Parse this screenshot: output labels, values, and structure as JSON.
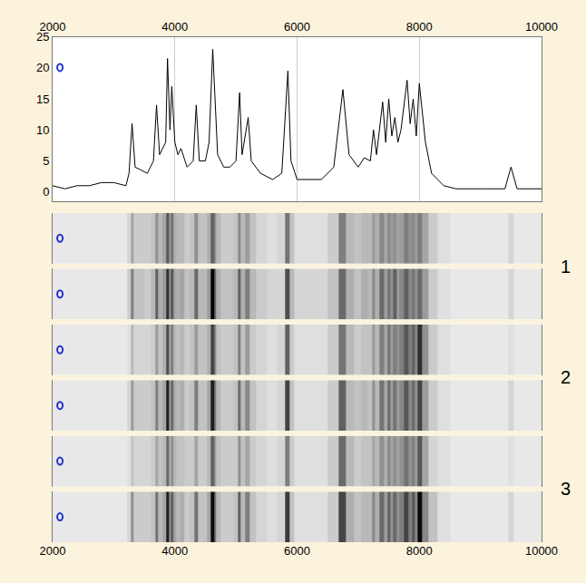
{
  "chart_data": {
    "type": "line",
    "x": [
      2000,
      2200,
      2400,
      2600,
      2800,
      3000,
      3200,
      3250,
      3300,
      3350,
      3450,
      3550,
      3650,
      3700,
      3750,
      3850,
      3880,
      3920,
      3950,
      4000,
      4050,
      4100,
      4200,
      4300,
      4350,
      4400,
      4500,
      4560,
      4620,
      4660,
      4700,
      4800,
      4900,
      5000,
      5060,
      5100,
      5200,
      5250,
      5400,
      5600,
      5750,
      5850,
      5900,
      6000,
      6200,
      6400,
      6600,
      6750,
      6850,
      7000,
      7100,
      7200,
      7250,
      7300,
      7400,
      7450,
      7500,
      7550,
      7600,
      7650,
      7700,
      7800,
      7850,
      7900,
      7950,
      8000,
      8100,
      8200,
      8400,
      8600,
      9000,
      9400,
      9500,
      9600,
      10000
    ],
    "values": [
      1,
      0.5,
      1,
      1,
      1.5,
      1.5,
      1,
      3,
      11,
      4,
      3.5,
      3,
      5,
      14,
      6,
      8,
      21.5,
      10,
      17,
      8,
      6,
      7,
      4,
      5,
      14,
      5,
      5,
      8,
      23,
      14,
      6,
      4,
      4,
      5,
      16,
      6,
      12,
      5,
      3,
      2,
      3,
      19.5,
      5,
      2,
      2,
      2,
      4,
      16.5,
      6,
      4,
      5.5,
      5,
      10,
      6,
      14.5,
      8,
      15,
      9,
      12,
      8,
      10,
      18,
      11,
      15,
      9,
      17.5,
      8,
      3,
      1,
      0.5,
      0.5,
      0.5,
      4,
      0.5,
      0.5
    ],
    "color": "#000000",
    "xlim": [
      2000,
      10000
    ],
    "xticks": [
      2000,
      4000,
      6000,
      8000,
      10000
    ],
    "ylim": [
      -1.5,
      25
    ],
    "yticks": [
      0,
      5,
      10,
      15,
      20,
      25
    ],
    "grid": "x",
    "gel": {
      "range": [
        0,
        25
      ],
      "labels": [
        "1",
        "2",
        "3"
      ],
      "lanes": [
        [
          1,
          1,
          1,
          1,
          1,
          1,
          1,
          3,
          8,
          4,
          4,
          4,
          5,
          10,
          6,
          8,
          16,
          9,
          13,
          7,
          6,
          6,
          4,
          5,
          10,
          5,
          5,
          7,
          15,
          10,
          6,
          4,
          4,
          5,
          11,
          6,
          9,
          5,
          3,
          2,
          3,
          13,
          5,
          2,
          2,
          2,
          4,
          12,
          6,
          5,
          6,
          6,
          9,
          7,
          11,
          8,
          11,
          9,
          10,
          8,
          9,
          12,
          10,
          11,
          9,
          12,
          8,
          4,
          2,
          1,
          1,
          1,
          3,
          1,
          1
        ],
        [
          1,
          1,
          1,
          1,
          1,
          1,
          1,
          4,
          12,
          5,
          5,
          4,
          6,
          15,
          7,
          9,
          20,
          10,
          16,
          8,
          7,
          8,
          5,
          6,
          14,
          6,
          6,
          9,
          25,
          14,
          7,
          5,
          5,
          6,
          15,
          7,
          12,
          6,
          4,
          3,
          3,
          17,
          6,
          3,
          3,
          3,
          5,
          14,
          7,
          5,
          7,
          6,
          11,
          7,
          14,
          9,
          13,
          10,
          15,
          9,
          11,
          15,
          11,
          13,
          10,
          14,
          9,
          4,
          2,
          1,
          1,
          1,
          3,
          1,
          1
        ],
        [
          1,
          1,
          1,
          1,
          1,
          1,
          1,
          2,
          6,
          3,
          3,
          3,
          4,
          9,
          5,
          7,
          17,
          8,
          12,
          6,
          5,
          6,
          4,
          5,
          9,
          5,
          5,
          7,
          18,
          11,
          5,
          4,
          4,
          5,
          12,
          5,
          9,
          4,
          3,
          2,
          3,
          15,
          4,
          2,
          2,
          2,
          4,
          13,
          6,
          4,
          5,
          5,
          9,
          6,
          12,
          8,
          13,
          9,
          12,
          10,
          12,
          16,
          12,
          15,
          11,
          20,
          10,
          4,
          2,
          1,
          1,
          1,
          2,
          1,
          1
        ],
        [
          1,
          1,
          1,
          1,
          1,
          1,
          1,
          3,
          9,
          4,
          4,
          4,
          5,
          12,
          6,
          8,
          22,
          9,
          14,
          7,
          6,
          7,
          4,
          5,
          12,
          5,
          5,
          8,
          22,
          12,
          6,
          4,
          4,
          5,
          14,
          6,
          11,
          5,
          3,
          2,
          3,
          18,
          5,
          2,
          2,
          2,
          4,
          15,
          6,
          5,
          6,
          5,
          10,
          6,
          13,
          8,
          14,
          9,
          13,
          9,
          11,
          16,
          11,
          14,
          10,
          18,
          9,
          4,
          2,
          1,
          1,
          1,
          3,
          1,
          1
        ],
        [
          1,
          1,
          1,
          1,
          1,
          1,
          1,
          2,
          5,
          3,
          3,
          3,
          4,
          8,
          5,
          6,
          14,
          7,
          10,
          6,
          5,
          5,
          4,
          4,
          8,
          4,
          4,
          6,
          15,
          9,
          5,
          4,
          4,
          4,
          10,
          5,
          8,
          4,
          3,
          2,
          3,
          12,
          4,
          2,
          2,
          2,
          4,
          14,
          6,
          4,
          5,
          5,
          8,
          6,
          10,
          7,
          11,
          8,
          10,
          8,
          10,
          13,
          10,
          12,
          9,
          16,
          8,
          3,
          2,
          1,
          1,
          1,
          2,
          1,
          1
        ],
        [
          1,
          1,
          1,
          1,
          1,
          1,
          1,
          3,
          10,
          4,
          4,
          4,
          5,
          13,
          6,
          8,
          22,
          10,
          15,
          8,
          6,
          7,
          4,
          5,
          13,
          5,
          5,
          8,
          24,
          13,
          6,
          4,
          4,
          5,
          15,
          6,
          12,
          5,
          3,
          2,
          3,
          19,
          5,
          2,
          2,
          2,
          4,
          18,
          7,
          5,
          6,
          6,
          11,
          7,
          14,
          9,
          15,
          10,
          14,
          10,
          12,
          18,
          12,
          16,
          11,
          24,
          11,
          5,
          2,
          1,
          1,
          1,
          3,
          1,
          1
        ]
      ]
    }
  }
}
